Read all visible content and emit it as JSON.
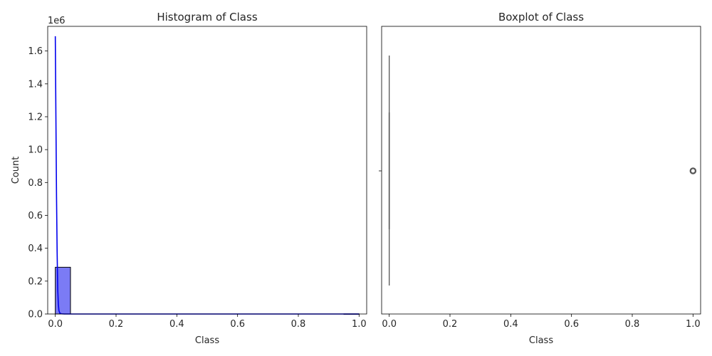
{
  "chart_data": [
    {
      "type": "bar",
      "title": "Histogram of Class",
      "xlabel": "Class",
      "ylabel": "Count",
      "y_offset_text": "1e6",
      "xlim": [
        -0.025,
        1.025
      ],
      "ylim": [
        0,
        1.75
      ],
      "xticks": [
        0.0,
        0.2,
        0.4,
        0.6,
        0.8,
        1.0
      ],
      "xtick_labels": [
        "0.0",
        "0.2",
        "0.4",
        "0.6",
        "0.8",
        "1.0"
      ],
      "yticks": [
        0.0,
        0.2,
        0.4,
        0.6,
        0.8,
        1.0,
        1.2,
        1.4,
        1.6
      ],
      "ytick_labels": [
        "0.0",
        "0.2",
        "0.4",
        "0.6",
        "0.8",
        "1.0",
        "1.2",
        "1.4",
        "1.6"
      ],
      "bins": [
        {
          "x0": 0.0,
          "x1": 0.05,
          "value": 0.2843
        },
        {
          "x0": 0.95,
          "x1": 1.0,
          "value": 0.0005
        }
      ],
      "bar_color": "#7b7bf5",
      "kde": {
        "color": "#0000ee",
        "x": [
          0.0,
          0.002,
          0.004,
          0.006,
          0.008,
          0.01,
          0.012,
          0.015,
          0.02,
          0.03,
          0.05,
          0.1,
          0.3,
          0.6,
          1.0
        ],
        "y": [
          1.69,
          1.2,
          0.72,
          0.38,
          0.15,
          0.06,
          0.02,
          0.005,
          0.001,
          0.0,
          0.0,
          0.0,
          0.0,
          0.0,
          0.0
        ]
      }
    },
    {
      "type": "box",
      "title": "Boxplot of Class",
      "xlabel": "Class",
      "xlim": [
        -0.025,
        1.025
      ],
      "xticks": [
        0.0,
        0.2,
        0.4,
        0.6,
        0.8,
        1.0
      ],
      "xtick_labels": [
        "0.0",
        "0.2",
        "0.4",
        "0.6",
        "0.8",
        "1.0"
      ],
      "q1": 0.0,
      "median": 0.0,
      "q3": 0.0,
      "whisker_low": 0.0,
      "whisker_high": 0.0,
      "outliers": [
        1.0
      ],
      "color": "#555555"
    }
  ]
}
